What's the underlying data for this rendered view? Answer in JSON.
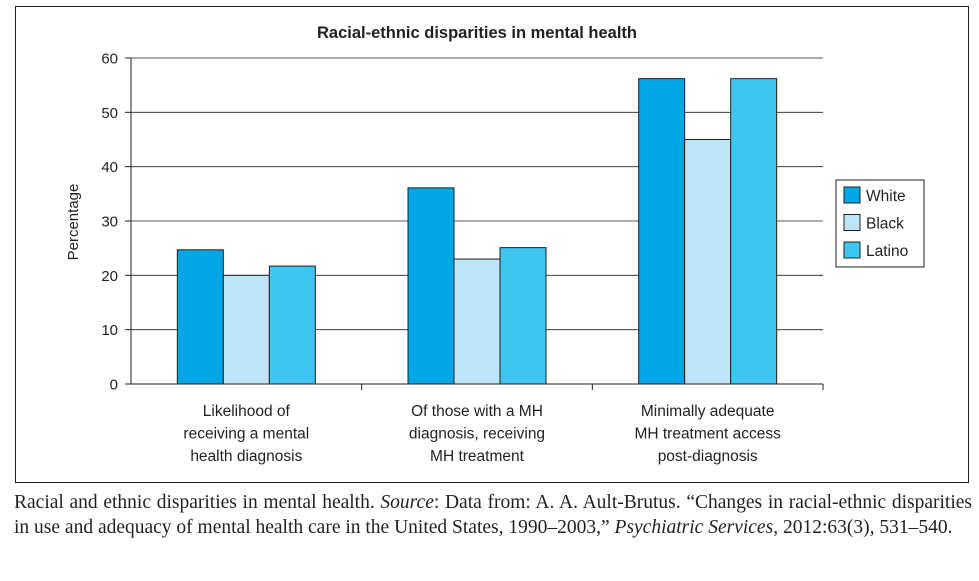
{
  "chart_data": {
    "type": "bar",
    "title": "Racial-ethnic disparities in mental health",
    "ylabel": "Percentage",
    "xlabel": "",
    "ylim": [
      0,
      60
    ],
    "yticks": [
      "0",
      "10",
      "20",
      "30",
      "40",
      "50",
      "60"
    ],
    "grid": true,
    "legend_position": "right",
    "categories": [
      [
        "Likelihood of",
        "receiving a mental",
        "health diagnosis"
      ],
      [
        "Of those with a MH",
        "diagnosis, receiving",
        "MH treatment"
      ],
      [
        "Minimally adequate",
        "MH treatment access",
        "post-diagnosis"
      ]
    ],
    "series": [
      {
        "name": "White",
        "color": "#00a6e6",
        "values": [
          24.7,
          36.1,
          56.2
        ]
      },
      {
        "name": "Black",
        "color": "#bde5f8",
        "values": [
          20.0,
          23.0,
          45.0
        ]
      },
      {
        "name": "Latino",
        "color": "#3ec6f0",
        "values": [
          21.7,
          25.1,
          56.2
        ]
      }
    ]
  },
  "caption": {
    "part1": "Racial and ethnic disparities in mental health. ",
    "source_label": "Source",
    "part2": ": Data from: A. A. Ault-Brutus. “Changes in racial-ethnic disparities in use and adequacy of mental health care in the United States, 1990–2003,” ",
    "journal": "Psychiatric Services",
    "part3": ", 2012:63(3), 531–540."
  }
}
